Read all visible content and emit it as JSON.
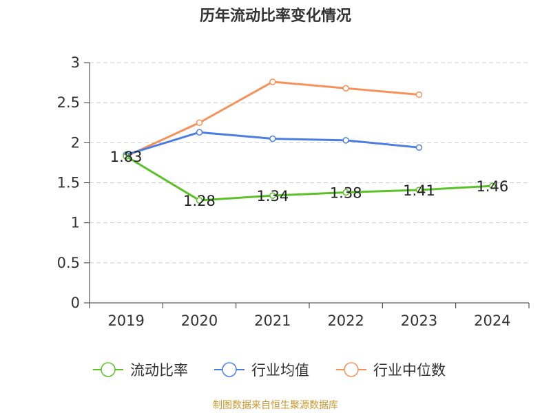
{
  "chart_data": {
    "type": "line",
    "title": "历年流动比率变化情况",
    "categories": [
      "2019",
      "2020",
      "2021",
      "2022",
      "2023",
      "2024"
    ],
    "ylim": [
      0,
      3
    ],
    "y_ticks": [
      "0",
      "0.5",
      "1",
      "1.5",
      "2",
      "2.5",
      "3"
    ],
    "grid": true,
    "legend_position": "bottom",
    "series": [
      {
        "name": "流动比率",
        "color": "#5ac127",
        "values": [
          1.83,
          1.28,
          1.34,
          1.38,
          1.41,
          1.46
        ],
        "labels": [
          "1.83",
          "1.28",
          "1.34",
          "1.38",
          "1.41",
          "1.46"
        ]
      },
      {
        "name": "行业均值",
        "color": "#4a7ee0",
        "values": [
          1.85,
          2.13,
          2.05,
          2.03,
          1.94,
          null
        ]
      },
      {
        "name": "行业中位数",
        "color": "#f6915a",
        "values": [
          1.83,
          2.25,
          2.76,
          2.68,
          2.6,
          null
        ]
      }
    ]
  },
  "source": "制图数据来自恒生聚源数据库"
}
